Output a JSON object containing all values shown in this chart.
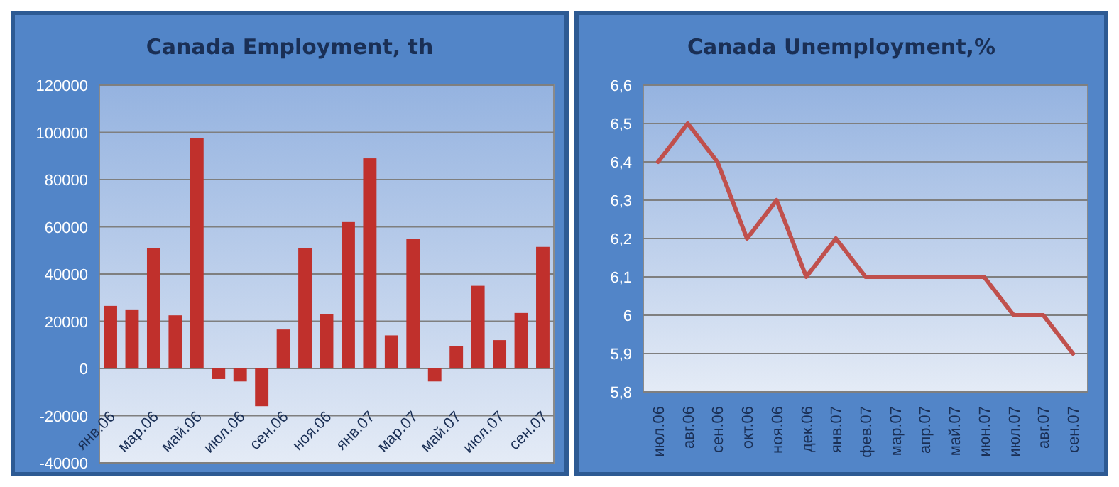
{
  "chart_data": [
    {
      "type": "bar",
      "title": "Canada Employment, th",
      "categories": [
        "янв.06",
        null,
        "мар.06",
        null,
        "май.06",
        null,
        "июл.06",
        null,
        "сен.06",
        null,
        "ноя.06",
        null,
        "янв.07",
        null,
        "мар.07",
        null,
        "май.07",
        null,
        "июл.07",
        null,
        "сен.07"
      ],
      "values": [
        26500,
        25000,
        51000,
        22500,
        97500,
        -4500,
        -5500,
        -16000,
        16500,
        51000,
        23000,
        62000,
        89000,
        14000,
        55000,
        -5500,
        9500,
        35000,
        12000,
        23500,
        51500
      ],
      "color": "#c0302c",
      "ylim": [
        -40000,
        120000
      ],
      "yticks": [
        -40000,
        -20000,
        0,
        20000,
        40000,
        60000,
        80000,
        100000,
        120000
      ],
      "grid": "y"
    },
    {
      "type": "line",
      "title": "Canada Unemployment,%",
      "categories": [
        "июл.06",
        "авг.06",
        "сен.06",
        "окт.06",
        "ноя.06",
        "дек.06",
        "янв.07",
        "фев.07",
        "мар.07",
        "апр.07",
        "май.07",
        "июн.07",
        "июл.07",
        "авг.07",
        "сен.07"
      ],
      "values": [
        6.4,
        6.5,
        6.4,
        6.2,
        6.3,
        6.1,
        6.2,
        6.1,
        6.1,
        6.1,
        6.1,
        6.1,
        6.0,
        6.0,
        5.9
      ],
      "color": "#c0504d",
      "ylim": [
        5.8,
        6.6
      ],
      "yticks": [
        {
          "value": 5.8,
          "label": "5,8"
        },
        {
          "value": 5.9,
          "label": "5,9"
        },
        6,
        {
          "value": 6.1,
          "label": "6,1"
        },
        {
          "value": 6.2,
          "label": "6,2"
        },
        {
          "value": 6.3,
          "label": "6,3"
        },
        {
          "value": 6.4,
          "label": "6,4"
        },
        {
          "value": 6.5,
          "label": "6,5"
        },
        {
          "value": 6.6,
          "label": "6,6"
        }
      ],
      "grid": "y",
      "marker": "none",
      "line_style": "solid"
    }
  ]
}
